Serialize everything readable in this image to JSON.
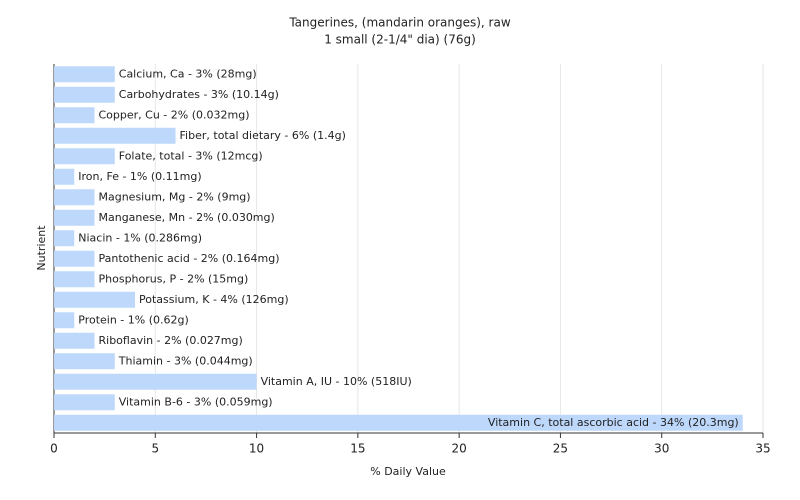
{
  "chart_data": {
    "type": "barh",
    "title": "Tangerines, (mandarin oranges), raw",
    "subtitle": "1 small (2-1/4\" dia) (76g)",
    "y_label": "Nutrient",
    "x_label": "% Daily Value",
    "color": "#bdd8fb",
    "values": [
      3,
      3,
      2,
      6,
      3,
      1,
      2,
      2,
      1,
      2,
      2,
      4,
      1,
      2,
      3,
      10,
      3,
      34
    ],
    "value_labels": [
      "Calcium, Ca - 3% (28mg)",
      "Carbohydrates - 3% (10.14g)",
      "Copper, Cu - 2% (0.032mg)",
      "Fiber, total dietary - 6% (1.4g)",
      "Folate, total - 3% (12mcg)",
      "Iron, Fe - 1% (0.11mg)",
      "Magnesium, Mg - 2% (9mg)",
      "Manganese, Mn - 2% (0.030mg)",
      "Niacin - 1% (0.286mg)",
      "Pantothenic acid - 2% (0.164mg)",
      "Phosphorus, P - 2% (15mg)",
      "Potassium, K - 4% (126mg)",
      "Protein - 1% (0.62g)",
      "Riboflavin - 2% (0.027mg)",
      "Thiamin - 3% (0.044mg)",
      "Vitamin A, IU - 10% (518IU)",
      "Vitamin B-6 - 3% (0.059mg)",
      "Vitamin C, total ascorbic acid - 34% (20.3mg)"
    ],
    "xlim": [
      0,
      35
    ],
    "xticks": [
      0,
      5,
      10,
      15,
      20,
      25,
      30,
      35
    ],
    "grid": true
  }
}
